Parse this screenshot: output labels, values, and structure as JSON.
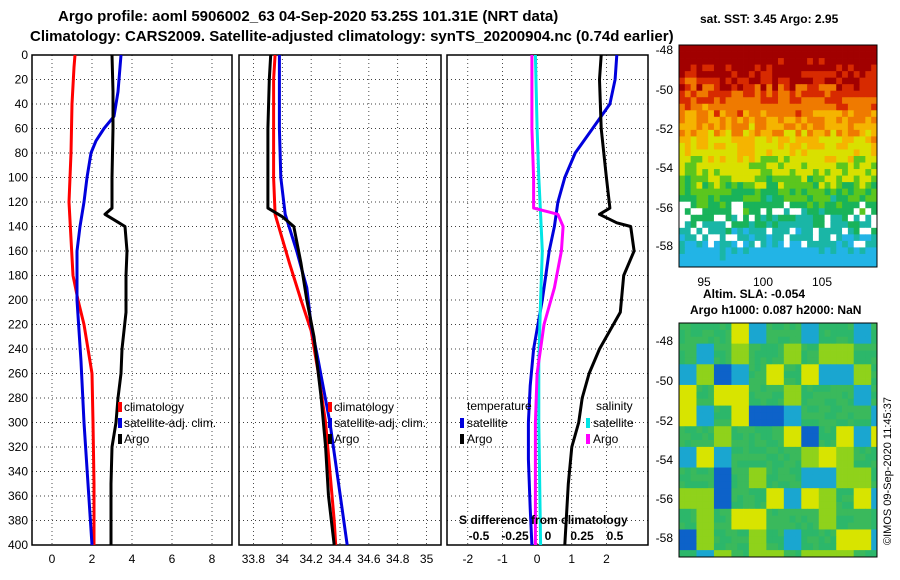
{
  "title_line1": "Argo profile: aoml 5906002_63 04-Sep-2020 53.25S 101.31E (NRT data)",
  "title_line2": "Climatology: CARS2009. Satellite-adjusted climatology: synTS_20200904.nc (0.74d earlier)",
  "colors": {
    "climatology": "#ff0000",
    "satellite": "#0000dd",
    "argo": "#000000",
    "salinity": "#ff00ff",
    "satellite_sal": "#00e5e5"
  },
  "chart_data": [
    {
      "type": "line",
      "name": "temperature",
      "ylabel": "",
      "ylim": [
        400,
        0
      ],
      "xlim": [
        -1,
        9
      ],
      "y_ticks": [
        "0",
        "20",
        "40",
        "60",
        "80",
        "100",
        "120",
        "140",
        "160",
        "180",
        "200",
        "220",
        "240",
        "260",
        "280",
        "300",
        "320",
        "340",
        "360",
        "380",
        "400"
      ],
      "x_ticks": [
        "0",
        "2",
        "4",
        "6",
        "8"
      ],
      "legend": [
        "climatology",
        "satellite-adj. clim.",
        "Argo"
      ],
      "series": [
        {
          "name": "climatology",
          "color": "#ff0000",
          "points": [
            [
              1.15,
              0
            ],
            [
              1.1,
              10
            ],
            [
              1.0,
              40
            ],
            [
              0.95,
              80
            ],
            [
              0.85,
              120
            ],
            [
              0.95,
              150
            ],
            [
              1.05,
              180
            ],
            [
              1.3,
              200
            ],
            [
              1.6,
              220
            ],
            [
              1.8,
              240
            ],
            [
              2.0,
              260
            ],
            [
              2.05,
              300
            ],
            [
              2.1,
              350
            ],
            [
              2.1,
              400
            ]
          ]
        },
        {
          "name": "satellite-adj. clim.",
          "color": "#0000dd",
          "points": [
            [
              3.45,
              0
            ],
            [
              3.4,
              10
            ],
            [
              3.3,
              30
            ],
            [
              3.1,
              50
            ],
            [
              2.6,
              60
            ],
            [
              2.2,
              70
            ],
            [
              1.95,
              80
            ],
            [
              1.75,
              100
            ],
            [
              1.6,
              120
            ],
            [
              1.4,
              140
            ],
            [
              1.25,
              160
            ],
            [
              1.25,
              180
            ],
            [
              1.25,
              200
            ],
            [
              1.45,
              250
            ],
            [
              1.6,
              300
            ],
            [
              1.8,
              350
            ],
            [
              2.0,
              400
            ]
          ]
        },
        {
          "name": "Argo",
          "color": "#000000",
          "points": [
            [
              3.0,
              0
            ],
            [
              3.05,
              30
            ],
            [
              3.05,
              60
            ],
            [
              3.0,
              100
            ],
            [
              3.0,
              125
            ],
            [
              2.65,
              130
            ],
            [
              3.35,
              137
            ],
            [
              3.65,
              140
            ],
            [
              3.75,
              160
            ],
            [
              3.7,
              180
            ],
            [
              3.7,
              210
            ],
            [
              3.5,
              240
            ],
            [
              3.45,
              260
            ],
            [
              3.3,
              280
            ],
            [
              3.2,
              300
            ],
            [
              3.0,
              320
            ],
            [
              2.95,
              350
            ],
            [
              2.95,
              400
            ]
          ]
        }
      ]
    },
    {
      "type": "line",
      "name": "salinity",
      "ylim": [
        400,
        0
      ],
      "xlim": [
        33.7,
        35.1
      ],
      "x_ticks": [
        "33.8",
        "34",
        "34.2",
        "34.4",
        "34.6",
        "34.8",
        "35"
      ],
      "legend": [
        "climatology",
        "satellite-adj. clim.",
        "Argo"
      ],
      "series": [
        {
          "name": "climatology",
          "color": "#ff0000",
          "points": [
            [
              33.95,
              0
            ],
            [
              33.94,
              20
            ],
            [
              33.94,
              60
            ],
            [
              33.94,
              100
            ],
            [
              33.95,
              130
            ],
            [
              34.0,
              150
            ],
            [
              34.05,
              170
            ],
            [
              34.13,
              200
            ],
            [
              34.2,
              225
            ],
            [
              34.25,
              260
            ],
            [
              34.3,
              300
            ],
            [
              34.33,
              340
            ],
            [
              34.36,
              380
            ],
            [
              34.37,
              400
            ]
          ]
        },
        {
          "name": "satellite-adj. clim.",
          "color": "#0000dd",
          "points": [
            [
              33.98,
              0
            ],
            [
              33.98,
              60
            ],
            [
              33.99,
              100
            ],
            [
              34.02,
              130
            ],
            [
              34.1,
              160
            ],
            [
              34.17,
              190
            ],
            [
              34.2,
              220
            ],
            [
              34.25,
              250
            ],
            [
              34.33,
              300
            ],
            [
              34.39,
              350
            ],
            [
              34.45,
              400
            ]
          ]
        },
        {
          "name": "Argo",
          "color": "#000000",
          "points": [
            [
              33.92,
              0
            ],
            [
              33.91,
              20
            ],
            [
              33.9,
              60
            ],
            [
              33.9,
              110
            ],
            [
              33.9,
              125
            ],
            [
              34.0,
              132
            ],
            [
              34.08,
              140
            ],
            [
              34.13,
              170
            ],
            [
              34.17,
              200
            ],
            [
              34.22,
              230
            ],
            [
              34.27,
              280
            ],
            [
              34.3,
              320
            ],
            [
              34.32,
              360
            ],
            [
              34.36,
              400
            ]
          ]
        }
      ]
    },
    {
      "type": "line",
      "name": "difference",
      "ylim": [
        400,
        0
      ],
      "xlim": [
        -2.6,
        3.2
      ],
      "x_ticks": [
        "-2",
        "-1",
        "0",
        "1",
        "2"
      ],
      "sal_ticks": [
        "-0.5",
        "-0.25",
        "0",
        "0.25",
        "0.5"
      ],
      "annotation": "S difference from climatology",
      "legend_groups": [
        {
          "title": "temperature",
          "items": [
            "satellite",
            "Argo"
          ]
        },
        {
          "title": "salinity",
          "items": [
            "satellite",
            "Argo"
          ]
        }
      ],
      "series": [
        {
          "name": "temperature satellite",
          "color": "#0000dd",
          "points": [
            [
              2.3,
              0
            ],
            [
              2.25,
              20
            ],
            [
              2.1,
              40
            ],
            [
              1.6,
              60
            ],
            [
              1.1,
              80
            ],
            [
              0.8,
              100
            ],
            [
              0.6,
              120
            ],
            [
              0.5,
              140
            ],
            [
              0.35,
              160
            ],
            [
              0.25,
              180
            ],
            [
              0.15,
              200
            ],
            [
              -0.1,
              240
            ],
            [
              -0.2,
              270
            ],
            [
              -0.25,
              300
            ],
            [
              -0.25,
              330
            ],
            [
              -0.2,
              370
            ],
            [
              -0.15,
              400
            ]
          ]
        },
        {
          "name": "temperature Argo",
          "color": "#000000",
          "points": [
            [
              1.85,
              0
            ],
            [
              1.8,
              20
            ],
            [
              1.85,
              60
            ],
            [
              2.0,
              100
            ],
            [
              2.1,
              125
            ],
            [
              1.8,
              130
            ],
            [
              2.3,
              137
            ],
            [
              2.7,
              140
            ],
            [
              2.8,
              160
            ],
            [
              2.5,
              180
            ],
            [
              2.4,
              210
            ],
            [
              1.8,
              240
            ],
            [
              1.5,
              260
            ],
            [
              1.3,
              280
            ],
            [
              1.2,
              300
            ],
            [
              1.0,
              320
            ],
            [
              0.9,
              350
            ],
            [
              0.8,
              400
            ]
          ]
        },
        {
          "name": "salinity satellite",
          "color": "#00e5e5",
          "points": [
            [
              -0.05,
              0
            ],
            [
              0.0,
              60
            ],
            [
              0.05,
              100
            ],
            [
              0.1,
              130
            ],
            [
              0.15,
              160
            ],
            [
              0.1,
              200
            ],
            [
              0.05,
              250
            ],
            [
              0.05,
              300
            ],
            [
              0.1,
              400
            ]
          ]
        },
        {
          "name": "salinity Argo",
          "color": "#ff00ff",
          "points": [
            [
              -0.15,
              0
            ],
            [
              -0.15,
              60
            ],
            [
              -0.1,
              100
            ],
            [
              -0.1,
              125
            ],
            [
              0.6,
              130
            ],
            [
              0.75,
              140
            ],
            [
              0.7,
              160
            ],
            [
              0.5,
              190
            ],
            [
              0.2,
              220
            ],
            [
              0.0,
              260
            ],
            [
              -0.05,
              300
            ],
            [
              -0.05,
              340
            ],
            [
              -0.05,
              400
            ]
          ]
        }
      ]
    },
    {
      "type": "heatmap",
      "name": "sst_map",
      "title": "sat. SST: 3.45 Argo: 2.95",
      "y_ticks": [
        "-48",
        "-50",
        "-52",
        "-54",
        "-56",
        "-58"
      ],
      "x_ticks": [
        "95",
        "100",
        "105"
      ]
    },
    {
      "type": "heatmap",
      "name": "sla_map",
      "title_line1": "Altim. SLA: -0.054",
      "title_line2": "Argo h1000: 0.087 h2000: NaN",
      "y_ticks": [
        "-48",
        "-50",
        "-52",
        "-54",
        "-56",
        "-58"
      ],
      "credit": "©IMOS 09-Sep-2020 11:45:37"
    }
  ]
}
